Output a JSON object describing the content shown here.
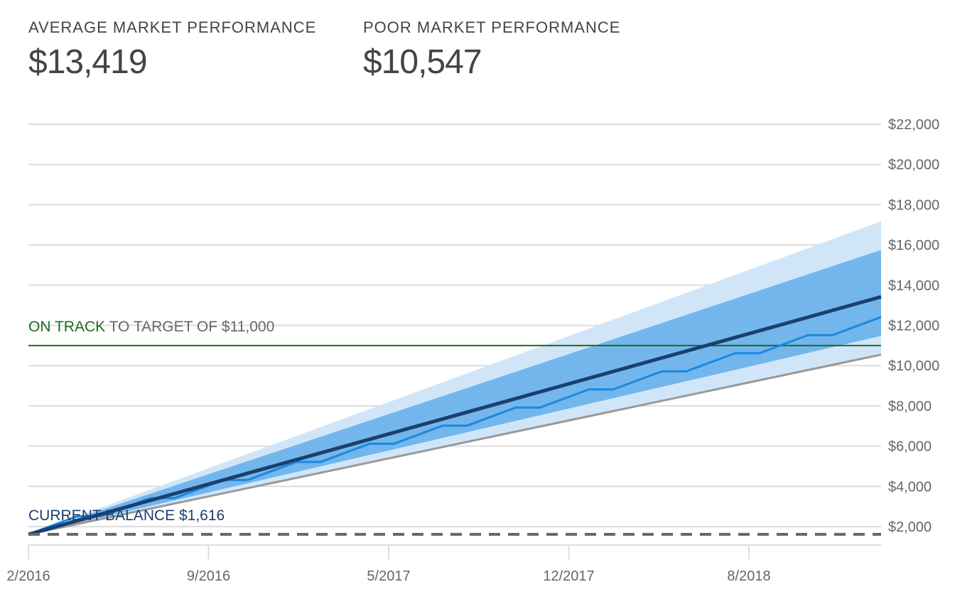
{
  "stats": [
    {
      "label": "AVERAGE MARKET PERFORMANCE",
      "value": "$13,419"
    },
    {
      "label": "POOR MARKET PERFORMANCE",
      "value": "$10,547"
    }
  ],
  "target": {
    "status": "ON TRACK",
    "text": "TO TARGET OF $11,000",
    "value": 11000,
    "color": "#1e6b1e"
  },
  "current": {
    "text": "CURRENT BALANCE $1,616",
    "value": 1616,
    "color": "#1c3f6e"
  },
  "chart_data": {
    "type": "line",
    "ylim": [
      0,
      22000
    ],
    "yticks": [
      2000,
      4000,
      6000,
      8000,
      10000,
      12000,
      14000,
      16000,
      18000,
      20000,
      22000
    ],
    "ytick_labels": [
      "$2,000",
      "$4,000",
      "$6,000",
      "$8,000",
      "$10,000",
      "$12,000",
      "$14,000",
      "$16,000",
      "$18,000",
      "$20,000",
      "$22,000"
    ],
    "xtick_labels": [
      "2/2016",
      "9/2016",
      "5/2017",
      "12/2017",
      "8/2018"
    ],
    "grid": true,
    "colors": {
      "outer_band": "#d0e6f8",
      "inner_band": "#72b6ec",
      "average": "#1c3f6e",
      "poor": "#999999",
      "projection": "#1a88e0",
      "grid": "#dddddd",
      "dashed": "#666666"
    },
    "outer_band": {
      "start": [
        1616,
        1616
      ],
      "end": [
        10547,
        17170
      ]
    },
    "inner_band": {
      "start": [
        1616,
        1616
      ],
      "end": [
        11480,
        15750
      ]
    },
    "average": {
      "start": 1616,
      "end": 13419
    },
    "poor": {
      "start": 1616,
      "end": 10547
    },
    "projection": [
      1616,
      2066,
      2516,
      2516,
      2966,
      3416,
      3416,
      3866,
      4316,
      4316,
      4766,
      5216,
      5216,
      5666,
      6116,
      6116,
      6566,
      7016,
      7016,
      7466,
      7916,
      7916,
      8366,
      8816,
      8816,
      9266,
      9716,
      9716,
      10166,
      10616,
      10616,
      11066,
      11516,
      11516,
      11966,
      12416
    ]
  }
}
